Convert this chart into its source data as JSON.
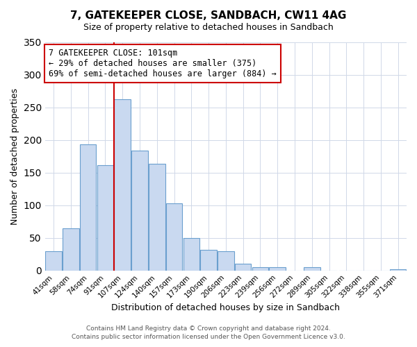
{
  "title": "7, GATEKEEPER CLOSE, SANDBACH, CW11 4AG",
  "subtitle": "Size of property relative to detached houses in Sandbach",
  "xlabel": "Distribution of detached houses by size in Sandbach",
  "ylabel": "Number of detached properties",
  "bar_labels": [
    "41sqm",
    "58sqm",
    "74sqm",
    "91sqm",
    "107sqm",
    "124sqm",
    "140sqm",
    "157sqm",
    "173sqm",
    "190sqm",
    "206sqm",
    "223sqm",
    "239sqm",
    "256sqm",
    "272sqm",
    "289sqm",
    "305sqm",
    "322sqm",
    "338sqm",
    "355sqm",
    "371sqm"
  ],
  "bar_values": [
    30,
    65,
    193,
    161,
    262,
    184,
    163,
    103,
    50,
    32,
    30,
    10,
    5,
    5,
    0,
    5,
    0,
    0,
    0,
    0,
    2
  ],
  "bar_color": "#c9d9f0",
  "bar_edge_color": "#6a9fce",
  "annotation_title": "7 GATEKEEPER CLOSE: 101sqm",
  "annotation_line1": "← 29% of detached houses are smaller (375)",
  "annotation_line2": "69% of semi-detached houses are larger (884) →",
  "annotation_box_color": "#ffffff",
  "annotation_box_edge_color": "#cc0000",
  "vline_color": "#cc0000",
  "ylim": [
    0,
    350
  ],
  "yticks": [
    0,
    50,
    100,
    150,
    200,
    250,
    300,
    350
  ],
  "grid_color": "#d0d8e8",
  "footer1": "Contains HM Land Registry data © Crown copyright and database right 2024.",
  "footer2": "Contains public sector information licensed under the Open Government Licence v3.0."
}
